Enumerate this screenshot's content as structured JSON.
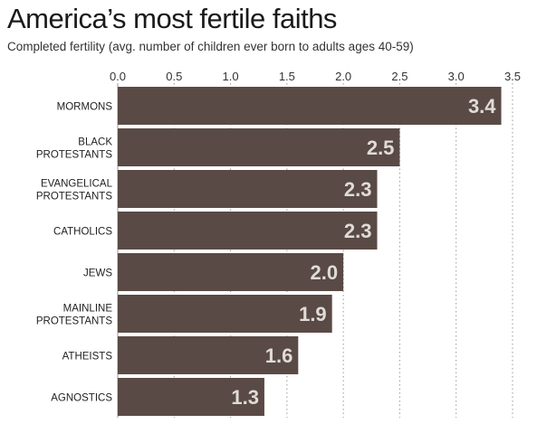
{
  "chart_data": {
    "type": "bar",
    "orientation": "horizontal",
    "title": "America’s most fertile faiths",
    "subtitle": "Completed fertility (avg. number of children ever born to adults ages 40-59)",
    "categories": [
      [
        "MORMONS"
      ],
      [
        "BLACK",
        "PROTESTANTS"
      ],
      [
        "EVANGELICAL",
        "PROTESTANTS"
      ],
      [
        "CATHOLICS"
      ],
      [
        "JEWS"
      ],
      [
        "MAINLINE",
        "PROTESTANTS"
      ],
      [
        "ATHEISTS"
      ],
      [
        "AGNOSTICS"
      ]
    ],
    "values": [
      3.4,
      2.5,
      2.3,
      2.3,
      2.0,
      1.9,
      1.6,
      1.3
    ],
    "value_labels": [
      "3.4",
      "2.5",
      "2.3",
      "2.3",
      "2.0",
      "1.9",
      "1.6",
      "1.3"
    ],
    "xlim": [
      0,
      3.5
    ],
    "xticks": [
      0,
      0.5,
      1.0,
      1.5,
      2.0,
      2.5,
      3.0,
      3.5
    ],
    "xtick_labels": [
      "0.0",
      "0.5",
      "1.0",
      "1.5",
      "2.0",
      "2.5",
      "3.0",
      "3.5"
    ],
    "axis_position": "top",
    "grid": "vertical-dotted",
    "bar_color": "#5a4a45",
    "value_label_color": "#e0dcd8"
  }
}
